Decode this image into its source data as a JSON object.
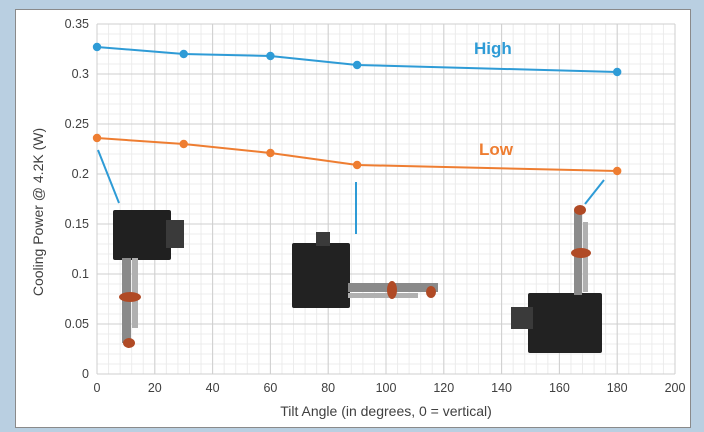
{
  "chart_data": {
    "type": "line",
    "xlabel": "Tilt Angle (in degrees, 0 = vertical)",
    "ylabel": "Cooling Power @ 4.2K (W)",
    "xlim": [
      0,
      200
    ],
    "ylim": [
      0,
      0.35
    ],
    "x_ticks": [
      "0",
      "20",
      "40",
      "60",
      "80",
      "100",
      "120",
      "140",
      "160",
      "180",
      "200"
    ],
    "y_ticks": [
      "0",
      "0.05",
      "0.1",
      "0.15",
      "0.2",
      "0.25",
      "0.3",
      "0.35"
    ],
    "grid": true,
    "series": [
      {
        "name": "High",
        "color": "#2e9bd6",
        "x": [
          0,
          30,
          60,
          90,
          180
        ],
        "y": [
          0.327,
          0.32,
          0.318,
          0.309,
          0.302
        ]
      },
      {
        "name": "Low",
        "color": "#ee7d31",
        "x": [
          0,
          30,
          60,
          90,
          180
        ],
        "y": [
          0.236,
          0.23,
          0.221,
          0.209,
          0.203
        ]
      }
    ],
    "annotations": [
      {
        "kind": "cryocooler-photo",
        "orientation_deg": 0
      },
      {
        "kind": "cryocooler-photo",
        "orientation_deg": 90
      },
      {
        "kind": "cryocooler-photo",
        "orientation_deg": 180
      }
    ]
  }
}
